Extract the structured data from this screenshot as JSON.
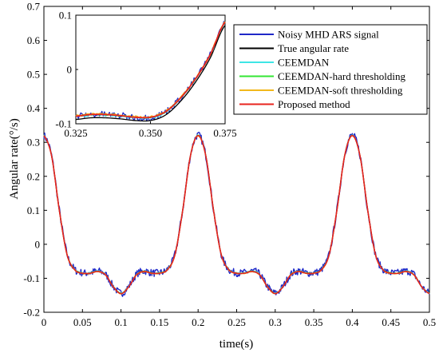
{
  "chart_data": {
    "type": "line",
    "xlabel": "time(s)",
    "ylabel": "Angular rate(°/s)",
    "xlim": [
      0,
      0.5
    ],
    "ylim": [
      -0.2,
      0.7
    ],
    "x_ticks": [
      "0",
      "0.05",
      "0.1",
      "0.15",
      "0.2",
      "0.25",
      "0.3",
      "0.35",
      "0.4",
      "0.45",
      "0.5"
    ],
    "y_ticks": [
      "-0.2",
      "-0.1",
      "0",
      "0.1",
      "0.2",
      "0.3",
      "0.4",
      "0.5",
      "0.6",
      "0.7"
    ],
    "grid": false,
    "legend_position": "top-right",
    "series": [
      {
        "name": "Noisy MHD ARS signal",
        "color": "#1f28c8"
      },
      {
        "name": "True angular rate",
        "color": "#000000"
      },
      {
        "name": "CEEMDAN",
        "color": "#3ee6e6"
      },
      {
        "name": "CEEMDAN-hard thresholding",
        "color": "#33e633"
      },
      {
        "name": "CEEMDAN-soft thresholding",
        "color": "#f2b81c"
      },
      {
        "name": "Proposed method",
        "color": "#e8231e"
      }
    ],
    "true_signal": {
      "x": [
        0,
        0.01,
        0.02,
        0.03,
        0.04,
        0.05,
        0.06,
        0.07,
        0.08,
        0.09,
        0.1,
        0.11,
        0.12,
        0.13,
        0.14,
        0.15,
        0.16,
        0.17,
        0.18,
        0.19,
        0.2,
        0.21,
        0.22,
        0.23,
        0.24,
        0.25,
        0.26,
        0.27,
        0.28,
        0.29,
        0.3,
        0.31,
        0.32,
        0.33,
        0.34,
        0.35,
        0.36,
        0.37,
        0.38,
        0.39,
        0.4,
        0.41,
        0.42,
        0.43,
        0.44,
        0.45,
        0.46,
        0.47,
        0.48,
        0.49,
        0.5
      ],
      "y": [
        0.32,
        0.26,
        0.1,
        -0.03,
        -0.075,
        -0.085,
        -0.085,
        -0.08,
        -0.09,
        -0.125,
        -0.145,
        -0.125,
        -0.09,
        -0.08,
        -0.085,
        -0.085,
        -0.075,
        -0.03,
        0.1,
        0.26,
        0.32,
        0.26,
        0.1,
        -0.03,
        -0.075,
        -0.085,
        -0.085,
        -0.08,
        -0.09,
        -0.125,
        -0.145,
        -0.125,
        -0.09,
        -0.08,
        -0.085,
        -0.085,
        -0.075,
        -0.03,
        0.1,
        0.26,
        0.32,
        0.26,
        0.1,
        -0.03,
        -0.075,
        -0.085,
        -0.085,
        -0.08,
        -0.09,
        -0.125,
        -0.145
      ]
    },
    "inset": {
      "xlim": [
        0.325,
        0.375
      ],
      "ylim": [
        -0.1,
        0.1
      ],
      "x_ticks": [
        "0.325",
        "0.350",
        "0.375"
      ],
      "y_ticks": [
        "-0.1",
        "0",
        "0.1"
      ],
      "x": [
        0.325,
        0.33,
        0.335,
        0.34,
        0.345,
        0.35,
        0.355,
        0.36,
        0.365,
        0.37,
        0.375
      ],
      "y": [
        -0.088,
        -0.085,
        -0.085,
        -0.087,
        -0.09,
        -0.09,
        -0.08,
        -0.055,
        -0.02,
        0.025,
        0.085
      ]
    }
  }
}
